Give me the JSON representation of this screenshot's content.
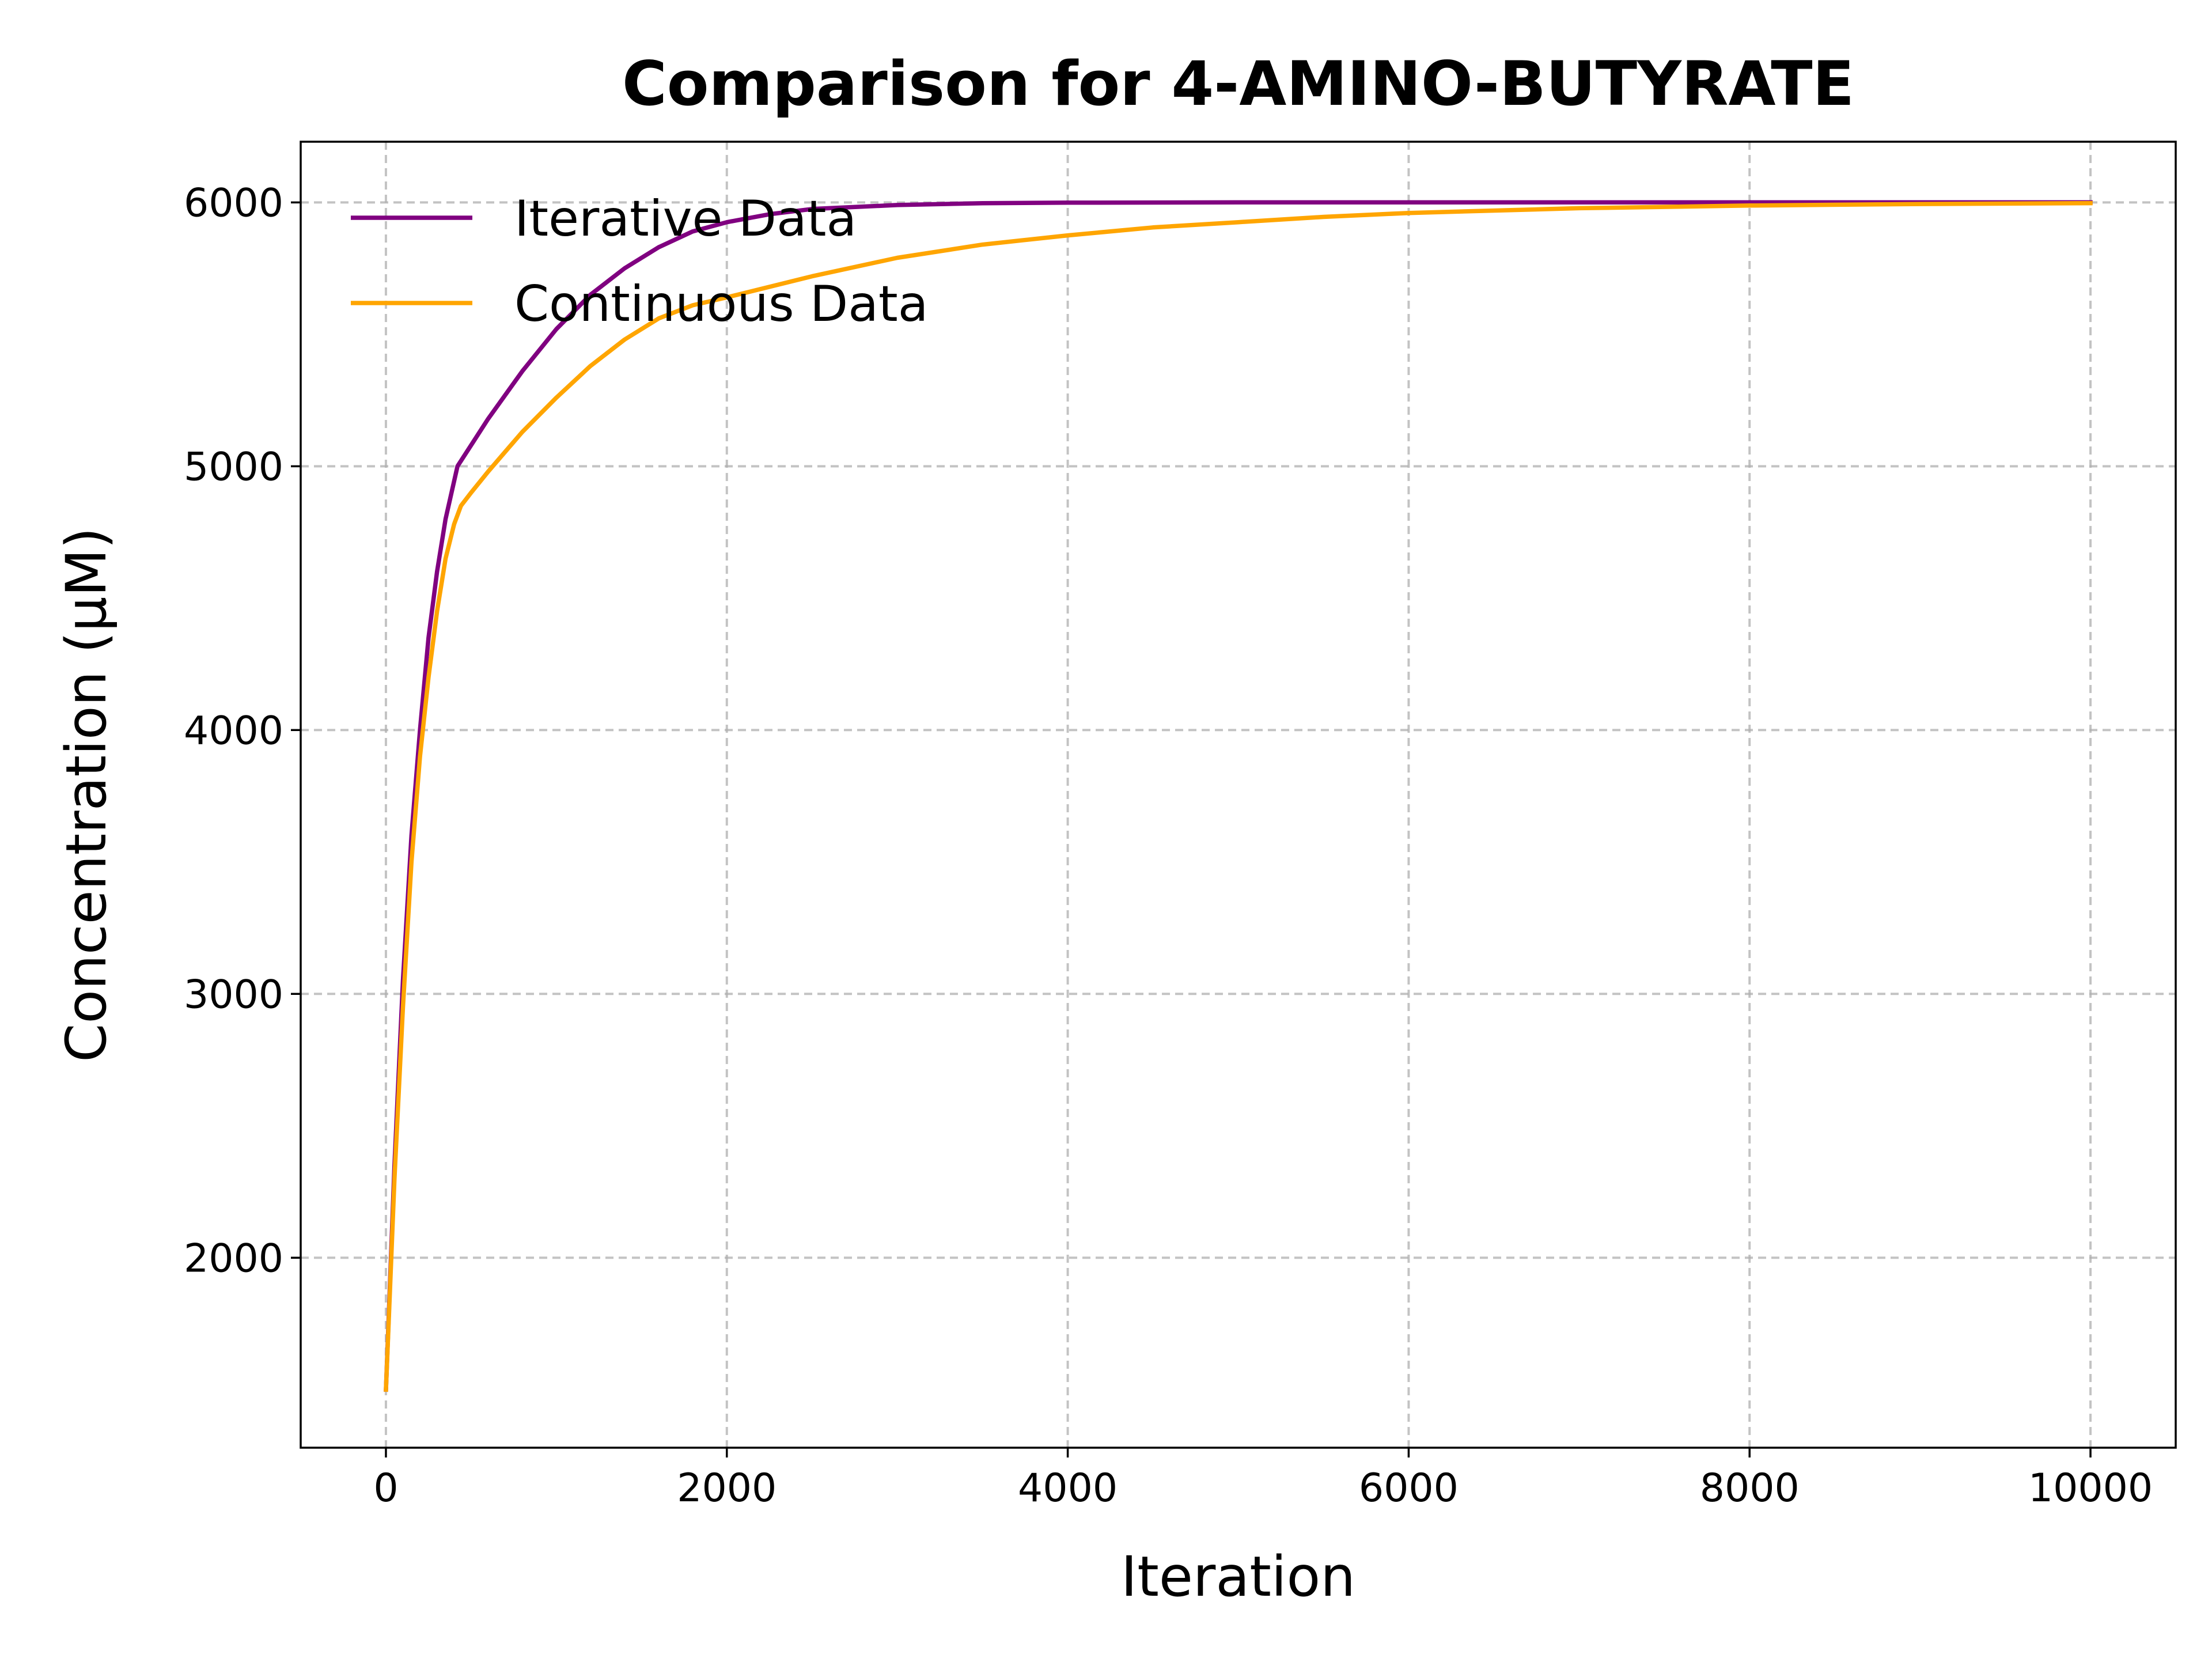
{
  "chart_data": {
    "type": "line",
    "title": "Comparison for 4-AMINO-BUTYRATE",
    "xlabel": "Iteration",
    "ylabel": "Concentration (μM)",
    "xlim": [
      -500,
      10500
    ],
    "ylim": [
      1280,
      6230
    ],
    "x_ticks": [
      0,
      2000,
      4000,
      6000,
      8000,
      10000
    ],
    "x_tick_labels": [
      "0",
      "2000",
      "4000",
      "6000",
      "8000",
      "10000"
    ],
    "y_ticks": [
      2000,
      3000,
      4000,
      5000,
      6000
    ],
    "y_tick_labels": [
      "2000",
      "3000",
      "4000",
      "5000",
      "6000"
    ],
    "grid": true,
    "legend_position": "top-left",
    "series": [
      {
        "name": "Iterative Data",
        "color": "#800080",
        "points": [
          [
            0,
            1500
          ],
          [
            50,
            2350
          ],
          [
            100,
            3050
          ],
          [
            150,
            3600
          ],
          [
            200,
            4000
          ],
          [
            250,
            4350
          ],
          [
            300,
            4600
          ],
          [
            350,
            4800
          ],
          [
            420,
            5000
          ],
          [
            500,
            5080
          ],
          [
            600,
            5180
          ],
          [
            800,
            5360
          ],
          [
            1000,
            5520
          ],
          [
            1200,
            5650
          ],
          [
            1400,
            5750
          ],
          [
            1600,
            5830
          ],
          [
            1800,
            5890
          ],
          [
            2000,
            5925
          ],
          [
            2250,
            5955
          ],
          [
            2500,
            5975
          ],
          [
            3000,
            5990
          ],
          [
            3500,
            5997
          ],
          [
            4000,
            5999
          ],
          [
            5000,
            6000
          ],
          [
            6000,
            6000
          ],
          [
            8000,
            6000
          ],
          [
            10000,
            6000
          ]
        ]
      },
      {
        "name": "Continuous Data",
        "color": "#FFA500",
        "points": [
          [
            0,
            1500
          ],
          [
            50,
            2300
          ],
          [
            100,
            2950
          ],
          [
            150,
            3500
          ],
          [
            200,
            3900
          ],
          [
            250,
            4200
          ],
          [
            300,
            4450
          ],
          [
            350,
            4650
          ],
          [
            400,
            4780
          ],
          [
            440,
            4850
          ],
          [
            500,
            4900
          ],
          [
            600,
            4980
          ],
          [
            800,
            5130
          ],
          [
            1000,
            5260
          ],
          [
            1200,
            5380
          ],
          [
            1400,
            5480
          ],
          [
            1600,
            5560
          ],
          [
            1800,
            5610
          ],
          [
            2000,
            5640
          ],
          [
            2500,
            5720
          ],
          [
            3000,
            5790
          ],
          [
            3500,
            5840
          ],
          [
            4000,
            5875
          ],
          [
            4500,
            5905
          ],
          [
            5000,
            5925
          ],
          [
            5500,
            5945
          ],
          [
            6000,
            5960
          ],
          [
            7000,
            5978
          ],
          [
            8000,
            5988
          ],
          [
            9000,
            5994
          ],
          [
            10000,
            5997
          ]
        ]
      }
    ]
  }
}
